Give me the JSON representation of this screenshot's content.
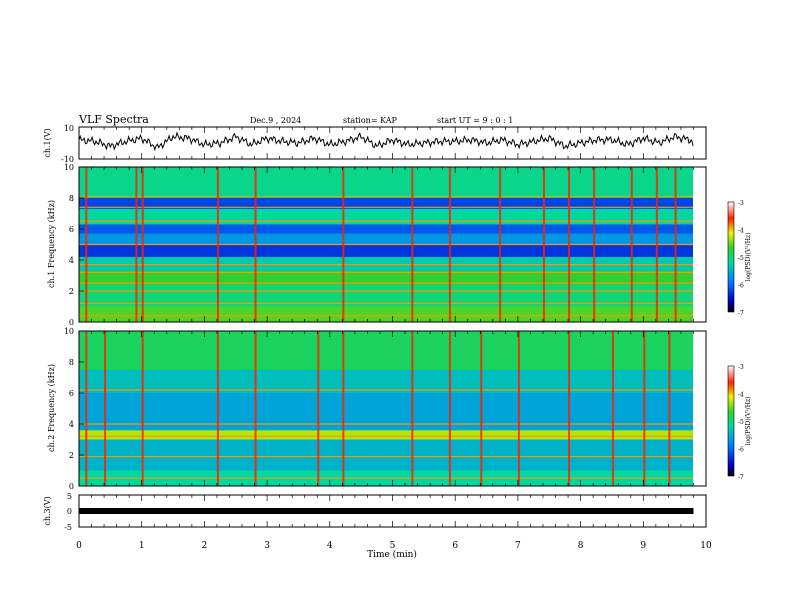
{
  "header": {
    "title": "VLF Spectra",
    "date": "Dec.9 , 2024",
    "station": "station= KAP",
    "start_ut": "start  UT =  9 : 0  : 1"
  },
  "chart_data": [
    {
      "type": "line",
      "ylabel": "ch.1(V)",
      "ylim": [
        -10,
        10
      ],
      "yticks": [
        "10",
        "-10"
      ],
      "xlim": [
        0,
        10
      ],
      "series": [
        {
          "x": [
            0,
            0.25,
            0.5,
            0.75,
            1,
            1.25,
            1.5,
            1.75,
            2,
            2.25,
            2.5,
            2.75,
            3,
            3.25,
            3.5,
            3.75,
            4,
            4.25,
            4.5,
            4.75,
            5,
            5.25,
            5.5,
            5.75,
            6,
            6.25,
            6.5,
            6.75,
            7,
            7.25,
            7.5,
            7.75,
            8,
            8.25,
            8.5,
            8.75,
            9,
            9.25,
            9.5,
            9.75,
            9.8
          ],
          "values": [
            2,
            1,
            -2,
            1,
            3,
            -3,
            4,
            3,
            -1,
            0,
            4,
            -1,
            3,
            1,
            0,
            3,
            -1,
            1,
            4,
            -2,
            2,
            -1,
            0,
            1,
            1,
            2,
            0,
            2,
            -1,
            1,
            3,
            -2,
            0,
            2,
            2,
            -1,
            3,
            0,
            4,
            2,
            -1
          ]
        }
      ]
    },
    {
      "type": "heatmap",
      "xlabel": "",
      "ylabel": "ch.1 Frequency (kHz)",
      "ylim": [
        0,
        10
      ],
      "yticks": [
        "0",
        "2",
        "4",
        "6",
        "8",
        "10"
      ],
      "xlim": [
        0,
        10
      ],
      "colorbar_label": "log(PSD)(V²/Hz)",
      "colorbar_range": [
        -7,
        -3
      ],
      "colorbar_ticks": [
        "-3",
        "-4",
        "-5",
        "-6",
        "-7"
      ],
      "bands": [
        {
          "kHz": [
            0,
            1.0
          ],
          "level": -4.6
        },
        {
          "kHz": [
            1.0,
            2.4
          ],
          "level": -5.0
        },
        {
          "kHz": [
            2.4,
            3.3
          ],
          "level": -4.7
        },
        {
          "kHz": [
            3.3,
            4.2
          ],
          "level": -5.3
        },
        {
          "kHz": [
            4.2,
            5.0
          ],
          "level": -6.3
        },
        {
          "kHz": [
            5.0,
            5.7
          ],
          "level": -5.7
        },
        {
          "kHz": [
            5.7,
            6.3
          ],
          "level": -6.1
        },
        {
          "kHz": [
            6.3,
            7.3
          ],
          "level": -5.2
        },
        {
          "kHz": [
            7.3,
            8.0
          ],
          "level": -6.2
        },
        {
          "kHz": [
            8.0,
            10.0
          ],
          "level": -5.1
        }
      ],
      "lines_kHz": [
        0.4,
        1.2,
        2.0,
        2.5,
        3.2,
        3.7,
        5.0,
        6.5,
        7.4,
        8.1
      ],
      "spikes_min": [
        0.1,
        0.9,
        1.0,
        2.2,
        2.8,
        4.2,
        5.3,
        5.9,
        6.7,
        7.4,
        7.8,
        8.2,
        8.8,
        9.2,
        9.5
      ]
    },
    {
      "type": "heatmap",
      "xlabel": "",
      "ylabel": "ch.2 Frequency (kHz)",
      "ylim": [
        0,
        10
      ],
      "yticks": [
        "0",
        "2",
        "4",
        "6",
        "8",
        "10"
      ],
      "xlim": [
        0,
        10
      ],
      "colorbar_label": "log(PSD)(V²/Hz)",
      "colorbar_range": [
        -7,
        -3
      ],
      "colorbar_ticks": [
        "-3",
        "-4",
        "-5",
        "-6",
        "-7"
      ],
      "bands": [
        {
          "kHz": [
            0,
            1.0
          ],
          "level": -5.2
        },
        {
          "kHz": [
            1.0,
            3.0
          ],
          "level": -5.5
        },
        {
          "kHz": [
            3.0,
            3.6
          ],
          "level": -4.3
        },
        {
          "kHz": [
            3.6,
            6.0
          ],
          "level": -5.6
        },
        {
          "kHz": [
            6.0,
            7.5
          ],
          "level": -5.4
        },
        {
          "kHz": [
            7.5,
            10.0
          ],
          "level": -4.9
        }
      ],
      "lines_kHz": [
        0.5,
        1.9,
        3.2,
        4.0,
        6.2
      ],
      "spikes_min": [
        0.1,
        0.4,
        1.0,
        2.2,
        2.8,
        3.8,
        4.2,
        5.3,
        5.9,
        6.4,
        7.0,
        7.8,
        8.5,
        9.0,
        9.4
      ]
    },
    {
      "type": "line",
      "ylabel": "ch.3(V)",
      "ylim": [
        -5,
        5
      ],
      "yticks": [
        "5",
        "0",
        "-5"
      ],
      "xlabel": "Time  (min)",
      "xlim": [
        0,
        10
      ],
      "xticks": [
        "0",
        "1",
        "2",
        "3",
        "4",
        "5",
        "6",
        "7",
        "8",
        "9",
        "10"
      ],
      "series": [
        {
          "x": [
            0,
            9.8
          ],
          "values": [
            0,
            0
          ]
        }
      ]
    }
  ]
}
